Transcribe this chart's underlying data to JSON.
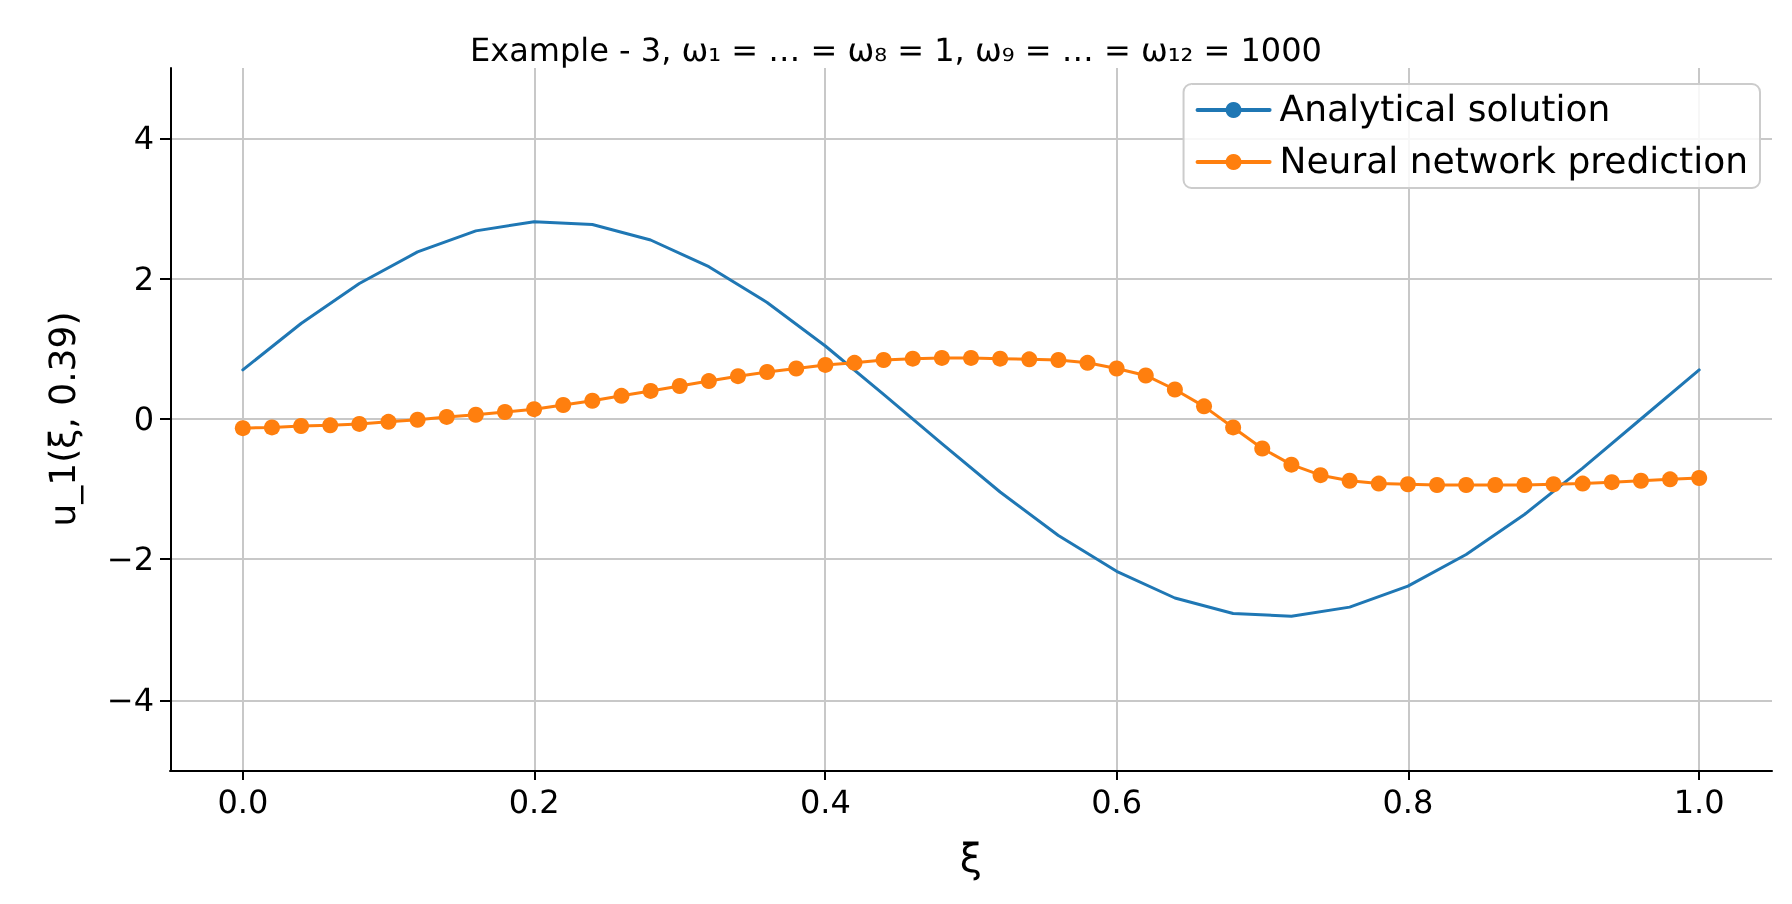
{
  "chart_data": {
    "type": "line",
    "title": "Example - 3, ω₁ = … = ω₈ = 1, ω₉ = … = ω₁₂ = 1000",
    "xlabel": "ξ",
    "ylabel": "u_1(ξ, 0.39)",
    "xlim": [
      -0.05,
      1.05
    ],
    "ylim": [
      -5,
      5
    ],
    "xticks": [
      {
        "value": 0,
        "label": "0.0"
      },
      {
        "value": 0.2,
        "label": "0.2"
      },
      {
        "value": 0.4,
        "label": "0.4"
      },
      {
        "value": 0.6,
        "label": "0.6"
      },
      {
        "value": 0.8,
        "label": "0.8"
      },
      {
        "value": 1,
        "label": "1.0"
      }
    ],
    "yticks": [
      {
        "value": -4,
        "label": "−4"
      },
      {
        "value": -2,
        "label": "−2"
      },
      0,
      2,
      4
    ],
    "grid": true,
    "legend": "top right",
    "line_style": "solid",
    "series": [
      {
        "name": "Analytical solution",
        "color": "#1f77b4",
        "marker": "none",
        "x": [
          0,
          0.04,
          0.08,
          0.12,
          0.16,
          0.2,
          0.24,
          0.28,
          0.32,
          0.36,
          0.4,
          0.44,
          0.48,
          0.52,
          0.56,
          0.6,
          0.64,
          0.68,
          0.72,
          0.76,
          0.8,
          0.84,
          0.88,
          0.92,
          0.96,
          1
        ],
        "values": [
          0.7,
          1.36,
          1.93,
          2.38,
          2.68,
          2.81,
          2.77,
          2.55,
          2.17,
          1.66,
          1.04,
          0.35,
          -0.35,
          -1.04,
          -1.66,
          -2.17,
          -2.55,
          -2.77,
          -2.81,
          -2.68,
          -2.38,
          -1.93,
          -1.36,
          -0.7,
          0,
          0.7
        ]
      },
      {
        "name": "Neural network prediction",
        "color": "#ff7f0e",
        "marker": "circle",
        "x": [
          0,
          0.02,
          0.04,
          0.06,
          0.08,
          0.1,
          0.12,
          0.14,
          0.16,
          0.18,
          0.2,
          0.22,
          0.24,
          0.26,
          0.28,
          0.3,
          0.32,
          0.34,
          0.36,
          0.38,
          0.4,
          0.42,
          0.44,
          0.46,
          0.48,
          0.5,
          0.52,
          0.54,
          0.56,
          0.58,
          0.6,
          0.62,
          0.64,
          0.66,
          0.68,
          0.7,
          0.72,
          0.74,
          0.76,
          0.78,
          0.8,
          0.82,
          0.84,
          0.86,
          0.88,
          0.9,
          0.92,
          0.94,
          0.96,
          0.98,
          1
        ],
        "values": [
          -0.13,
          -0.12,
          -0.1,
          -0.09,
          -0.07,
          -0.04,
          -0.01,
          0.03,
          0.06,
          0.1,
          0.14,
          0.2,
          0.26,
          0.33,
          0.4,
          0.47,
          0.54,
          0.61,
          0.67,
          0.72,
          0.77,
          0.8,
          0.84,
          0.86,
          0.87,
          0.87,
          0.86,
          0.85,
          0.84,
          0.8,
          0.72,
          0.62,
          0.42,
          0.18,
          -0.12,
          -0.42,
          -0.65,
          -0.8,
          -0.88,
          -0.92,
          -0.93,
          -0.94,
          -0.94,
          -0.94,
          -0.94,
          -0.93,
          -0.92,
          -0.9,
          -0.88,
          -0.86,
          -0.84
        ]
      }
    ]
  }
}
